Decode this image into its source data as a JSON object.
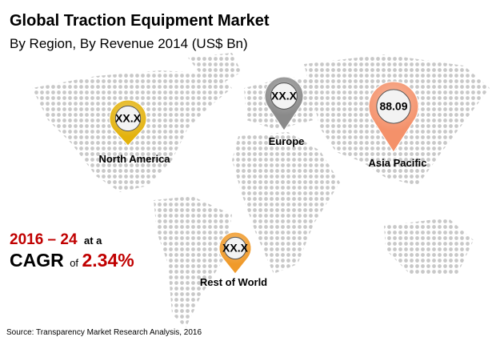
{
  "header": {
    "title": "Global Traction Equipment Market",
    "subtitle": "By Region, By Revenue 2014 (US$ Bn)"
  },
  "regions": [
    {
      "label": "North America",
      "value": "XX.X"
    },
    {
      "label": "Europe",
      "value": "XX.X"
    },
    {
      "label": "Asia Pacific",
      "value": "88.09"
    },
    {
      "label": "Rest of World",
      "value": "XX.X"
    }
  ],
  "cagr": {
    "period": "2016 – 24",
    "at": "at a",
    "label": "CAGR",
    "of": "of",
    "rate": "2.34%"
  },
  "source": "Source: Transparency Market Research Analysis, 2016"
}
